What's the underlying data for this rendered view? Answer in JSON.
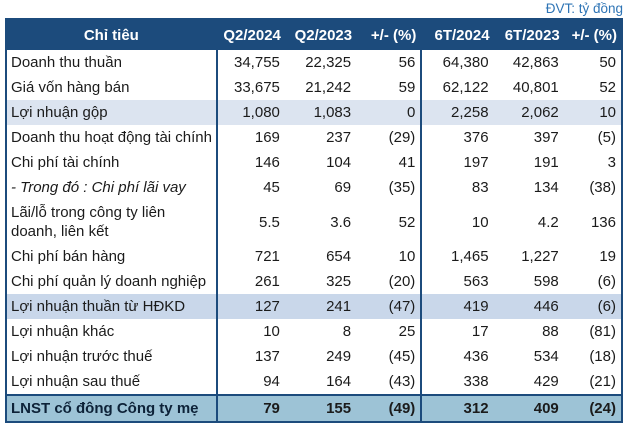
{
  "unit_note": "ĐVT: tỷ đồng",
  "colors": {
    "header_bg": "#1C4B7C",
    "header_text": "#ffffff",
    "unit_note_text": "#2E74B5",
    "highlight_row_1": "#DCE4F0",
    "highlight_row_2": "#C9D7EA",
    "total_row_bg": "#9DC3D6",
    "negative_value": "#FF0000",
    "border": "#1C4B7C"
  },
  "chart_data": {
    "type": "table",
    "unit_note": "ĐVT: tỷ đồng",
    "label_header": "Chỉ tiêu",
    "columns": [
      "Q2/2024",
      "Q2/2023",
      "+/- (%)",
      "6T/2024",
      "6T/2023",
      "+/- (%)"
    ],
    "rows": [
      {
        "label": "Doanh thu thuần",
        "values": [
          "34,755",
          "22,325",
          "56",
          "64,380",
          "42,863",
          "50"
        ],
        "style": "normal"
      },
      {
        "label": "Giá vốn hàng bán",
        "values": [
          "33,675",
          "21,242",
          "59",
          "62,122",
          "40,801",
          "52"
        ],
        "style": "normal"
      },
      {
        "label": "Lợi nhuận gộp",
        "values": [
          "1,080",
          "1,083",
          "0",
          "2,258",
          "2,062",
          "10"
        ],
        "style": "highlight1"
      },
      {
        "label": "Doanh thu hoạt động tài chính",
        "values": [
          "169",
          "237",
          "(29)",
          "376",
          "397",
          "(5)"
        ],
        "style": "normal"
      },
      {
        "label": "Chi phí tài chính",
        "values": [
          "146",
          "104",
          "41",
          "197",
          "191",
          "3"
        ],
        "style": "normal"
      },
      {
        "label": "- Trong đó : Chi phí lãi vay",
        "values": [
          "45",
          "69",
          "(35)",
          "83",
          "134",
          "(38)"
        ],
        "style": "normal",
        "label_italic": true
      },
      {
        "label": "Lãi/lỗ trong công ty liên doanh, liên kết",
        "values": [
          "5.5",
          "3.6",
          "52",
          "10",
          "4.2",
          "136"
        ],
        "style": "normal"
      },
      {
        "label": "Chi phí bán hàng",
        "values": [
          "721",
          "654",
          "10",
          "1,465",
          "1,227",
          "19"
        ],
        "style": "normal"
      },
      {
        "label": "Chi phí quản lý doanh nghiệp",
        "values": [
          "261",
          "325",
          "(20)",
          "563",
          "598",
          "(6)"
        ],
        "style": "normal"
      },
      {
        "label": "Lợi nhuận thuần từ HĐKD",
        "values": [
          "127",
          "241",
          "(47)",
          "419",
          "446",
          "(6)"
        ],
        "style": "highlight2"
      },
      {
        "label": "Lợi nhuận khác",
        "values": [
          "10",
          "8",
          "25",
          "17",
          "88",
          "(81)"
        ],
        "style": "normal"
      },
      {
        "label": "Lợi nhuận trước thuế",
        "values": [
          "137",
          "249",
          "(45)",
          "436",
          "534",
          "(18)"
        ],
        "style": "normal"
      },
      {
        "label": "Lợi nhuận sau thuế",
        "values": [
          "94",
          "164",
          "(43)",
          "338",
          "429",
          "(21)"
        ],
        "style": "normal"
      },
      {
        "label": "LNST cổ đông Công ty mẹ",
        "values": [
          "79",
          "155",
          "(49)",
          "312",
          "409",
          "(24)"
        ],
        "style": "total"
      }
    ]
  }
}
